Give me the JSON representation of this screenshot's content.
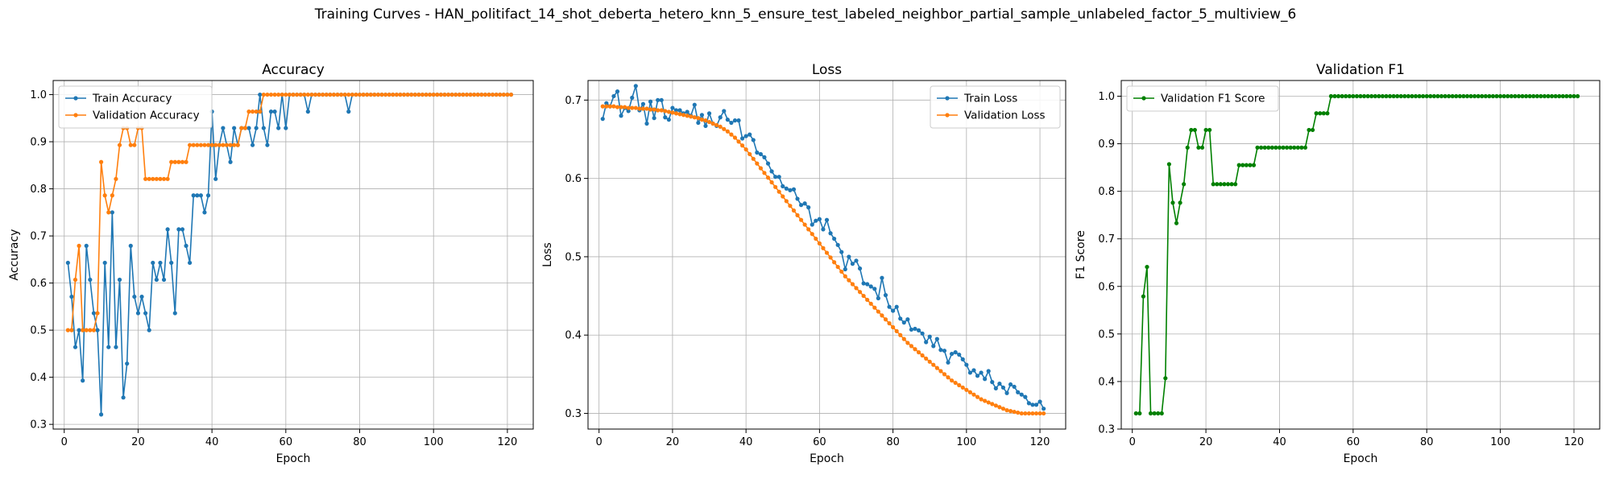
{
  "figure": {
    "title": "Training Curves - HAN_politifact_14_shot_deberta_hetero_knn_5_ensure_test_labeled_neighbor_partial_sample_unlabeled_factor_5_multiview_6"
  },
  "chart_data": [
    {
      "type": "line",
      "title": "Accuracy",
      "xlabel": "Epoch",
      "ylabel": "Accuracy",
      "xlim": [
        -3.0,
        127.0
      ],
      "ylim": [
        0.29,
        1.03
      ],
      "xticks": [
        0,
        20,
        40,
        60,
        80,
        100,
        120
      ],
      "yticks": [
        0.3,
        0.4,
        0.5,
        0.6,
        0.7,
        0.8,
        0.9,
        1.0
      ],
      "ytick_labels": [
        "0.3",
        "0.4",
        "0.5",
        "0.6",
        "0.7",
        "0.8",
        "0.9",
        "1.0"
      ],
      "grid": true,
      "legend_position": "upper-left",
      "x": [
        1,
        2,
        3,
        4,
        5,
        6,
        7,
        8,
        9,
        10,
        11,
        12,
        13,
        14,
        15,
        16,
        17,
        18,
        19,
        20,
        21,
        22,
        23,
        24,
        25,
        26,
        27,
        28,
        29,
        30,
        31,
        32,
        33,
        34,
        35,
        36,
        37,
        38,
        39,
        40,
        41,
        42,
        43,
        44,
        45,
        46,
        47,
        48,
        49,
        50,
        51,
        52,
        53,
        54,
        55,
        56,
        57,
        58,
        59,
        60,
        61,
        62,
        63,
        64,
        65,
        66,
        67,
        68,
        69,
        70,
        71,
        72,
        73,
        74,
        75,
        76,
        77,
        78,
        79,
        80,
        81,
        82,
        83,
        84,
        85,
        86,
        87,
        88,
        89,
        90,
        91,
        92,
        93,
        94,
        95,
        96,
        97,
        98,
        99,
        100,
        101,
        102,
        103,
        104,
        105,
        106,
        107,
        108,
        109,
        110,
        111,
        112,
        113,
        114,
        115,
        116,
        117,
        118,
        119,
        120,
        121
      ],
      "series": [
        {
          "name": "Train Accuracy",
          "color": "#1f77b4",
          "values": [
            0.643,
            0.571,
            0.464,
            0.5,
            0.393,
            0.679,
            0.607,
            0.536,
            0.5,
            0.321,
            0.643,
            0.464,
            0.75,
            0.464,
            0.607,
            0.357,
            0.429,
            0.679,
            0.571,
            0.536,
            0.571,
            0.536,
            0.5,
            0.643,
            0.607,
            0.643,
            0.607,
            0.714,
            0.643,
            0.536,
            0.714,
            0.714,
            0.679,
            0.643,
            0.786,
            0.786,
            0.786,
            0.75,
            0.786,
            0.964,
            0.821,
            0.893,
            0.929,
            0.893,
            0.857,
            0.929,
            0.893,
            0.929,
            0.929,
            0.929,
            0.893,
            0.929,
            1.0,
            0.929,
            0.893,
            0.964,
            0.964,
            0.929,
            1.0,
            0.929,
            1.0,
            1.0,
            1.0,
            1.0,
            1.0,
            0.964,
            1.0,
            1.0,
            1.0,
            1.0,
            1.0,
            1.0,
            1.0,
            1.0,
            1.0,
            1.0,
            0.964,
            1.0,
            1.0,
            1.0,
            1.0,
            1.0,
            1.0,
            1.0,
            1.0,
            1.0,
            1.0,
            1.0,
            1.0,
            1.0,
            1.0,
            1.0,
            1.0,
            1.0,
            1.0,
            1.0,
            1.0,
            1.0,
            1.0,
            1.0,
            1.0,
            1.0,
            1.0,
            1.0,
            1.0,
            1.0,
            1.0,
            1.0,
            1.0,
            1.0,
            1.0,
            1.0,
            1.0,
            1.0,
            1.0,
            1.0,
            1.0,
            1.0,
            1.0,
            1.0,
            1.0
          ]
        },
        {
          "name": "Validation Accuracy",
          "color": "#ff7f0e",
          "values": [
            0.5,
            0.5,
            0.607,
            0.679,
            0.5,
            0.5,
            0.5,
            0.5,
            0.536,
            0.857,
            0.786,
            0.75,
            0.786,
            0.821,
            0.893,
            0.929,
            0.929,
            0.893,
            0.893,
            0.929,
            0.929,
            0.821,
            0.821,
            0.821,
            0.821,
            0.821,
            0.821,
            0.821,
            0.857,
            0.857,
            0.857,
            0.857,
            0.857,
            0.893,
            0.893,
            0.893,
            0.893,
            0.893,
            0.893,
            0.893,
            0.893,
            0.893,
            0.893,
            0.893,
            0.893,
            0.893,
            0.893,
            0.929,
            0.929,
            0.964,
            0.964,
            0.964,
            0.964,
            1.0,
            1.0,
            1.0,
            1.0,
            1.0,
            1.0,
            1.0,
            1.0,
            1.0,
            1.0,
            1.0,
            1.0,
            1.0,
            1.0,
            1.0,
            1.0,
            1.0,
            1.0,
            1.0,
            1.0,
            1.0,
            1.0,
            1.0,
            1.0,
            1.0,
            1.0,
            1.0,
            1.0,
            1.0,
            1.0,
            1.0,
            1.0,
            1.0,
            1.0,
            1.0,
            1.0,
            1.0,
            1.0,
            1.0,
            1.0,
            1.0,
            1.0,
            1.0,
            1.0,
            1.0,
            1.0,
            1.0,
            1.0,
            1.0,
            1.0,
            1.0,
            1.0,
            1.0,
            1.0,
            1.0,
            1.0,
            1.0,
            1.0,
            1.0,
            1.0,
            1.0,
            1.0,
            1.0,
            1.0,
            1.0,
            1.0,
            1.0,
            1.0
          ]
        }
      ]
    },
    {
      "type": "line",
      "title": "Loss",
      "xlabel": "Epoch",
      "ylabel": "Loss",
      "xlim": [
        -3.0,
        127.0
      ],
      "ylim": [
        0.28,
        0.725
      ],
      "xticks": [
        0,
        20,
        40,
        60,
        80,
        100,
        120
      ],
      "yticks": [
        0.3,
        0.4,
        0.5,
        0.6,
        0.7
      ],
      "ytick_labels": [
        "0.3",
        "0.4",
        "0.5",
        "0.6",
        "0.7"
      ],
      "grid": true,
      "legend_position": "upper-right",
      "x": [
        1,
        2,
        3,
        4,
        5,
        6,
        7,
        8,
        9,
        10,
        11,
        12,
        13,
        14,
        15,
        16,
        17,
        18,
        19,
        20,
        21,
        22,
        23,
        24,
        25,
        26,
        27,
        28,
        29,
        30,
        31,
        32,
        33,
        34,
        35,
        36,
        37,
        38,
        39,
        40,
        41,
        42,
        43,
        44,
        45,
        46,
        47,
        48,
        49,
        50,
        51,
        52,
        53,
        54,
        55,
        56,
        57,
        58,
        59,
        60,
        61,
        62,
        63,
        64,
        65,
        66,
        67,
        68,
        69,
        70,
        71,
        72,
        73,
        74,
        75,
        76,
        77,
        78,
        79,
        80,
        81,
        82,
        83,
        84,
        85,
        86,
        87,
        88,
        89,
        90,
        91,
        92,
        93,
        94,
        95,
        96,
        97,
        98,
        99,
        100,
        101,
        102,
        103,
        104,
        105,
        106,
        107,
        108,
        109,
        110,
        111,
        112,
        113,
        114,
        115,
        116,
        117,
        118,
        119,
        120,
        121
      ],
      "series": [
        {
          "name": "Train Loss",
          "color": "#1f77b4",
          "values": [
            0.676,
            0.696,
            0.692,
            0.705,
            0.711,
            0.68,
            0.69,
            0.686,
            0.703,
            0.718,
            0.687,
            0.695,
            0.67,
            0.698,
            0.677,
            0.7,
            0.7,
            0.678,
            0.675,
            0.69,
            0.687,
            0.687,
            0.683,
            0.685,
            0.68,
            0.694,
            0.671,
            0.681,
            0.667,
            0.683,
            0.67,
            0.667,
            0.678,
            0.686,
            0.675,
            0.671,
            0.674,
            0.674,
            0.651,
            0.654,
            0.656,
            0.649,
            0.633,
            0.631,
            0.627,
            0.619,
            0.609,
            0.602,
            0.602,
            0.59,
            0.587,
            0.585,
            0.586,
            0.574,
            0.566,
            0.568,
            0.563,
            0.541,
            0.546,
            0.548,
            0.535,
            0.547,
            0.53,
            0.523,
            0.515,
            0.506,
            0.484,
            0.5,
            0.491,
            0.495,
            0.485,
            0.466,
            0.465,
            0.462,
            0.459,
            0.447,
            0.473,
            0.451,
            0.436,
            0.431,
            0.436,
            0.421,
            0.416,
            0.42,
            0.407,
            0.408,
            0.406,
            0.402,
            0.391,
            0.398,
            0.386,
            0.395,
            0.381,
            0.38,
            0.365,
            0.376,
            0.378,
            0.375,
            0.369,
            0.362,
            0.352,
            0.355,
            0.348,
            0.352,
            0.344,
            0.354,
            0.34,
            0.332,
            0.338,
            0.333,
            0.326,
            0.337,
            0.334,
            0.327,
            0.324,
            0.321,
            0.313,
            0.311,
            0.311,
            0.315,
            0.306
          ]
        },
        {
          "name": "Validation Loss",
          "color": "#ff7f0e",
          "values": [
            0.692,
            0.692,
            0.692,
            0.692,
            0.691,
            0.691,
            0.691,
            0.69,
            0.69,
            0.69,
            0.689,
            0.689,
            0.689,
            0.688,
            0.688,
            0.687,
            0.687,
            0.686,
            0.685,
            0.684,
            0.683,
            0.682,
            0.681,
            0.68,
            0.679,
            0.678,
            0.677,
            0.675,
            0.674,
            0.672,
            0.67,
            0.668,
            0.666,
            0.663,
            0.66,
            0.656,
            0.652,
            0.647,
            0.642,
            0.637,
            0.631,
            0.625,
            0.619,
            0.613,
            0.607,
            0.601,
            0.595,
            0.589,
            0.583,
            0.577,
            0.571,
            0.565,
            0.559,
            0.553,
            0.547,
            0.541,
            0.535,
            0.529,
            0.523,
            0.517,
            0.511,
            0.505,
            0.499,
            0.493,
            0.487,
            0.481,
            0.475,
            0.47,
            0.465,
            0.46,
            0.455,
            0.45,
            0.445,
            0.44,
            0.435,
            0.43,
            0.425,
            0.42,
            0.415,
            0.41,
            0.405,
            0.4,
            0.395,
            0.39,
            0.386,
            0.382,
            0.378,
            0.374,
            0.37,
            0.366,
            0.362,
            0.358,
            0.354,
            0.35,
            0.346,
            0.342,
            0.339,
            0.336,
            0.333,
            0.33,
            0.327,
            0.324,
            0.321,
            0.318,
            0.316,
            0.314,
            0.312,
            0.31,
            0.308,
            0.306,
            0.304,
            0.303,
            0.302,
            0.301,
            0.3,
            0.3,
            0.3,
            0.3,
            0.3,
            0.3,
            0.3
          ]
        }
      ]
    },
    {
      "type": "line",
      "title": "Validation F1",
      "xlabel": "Epoch",
      "ylabel": "F1 Score",
      "xlim": [
        -3.0,
        127.0
      ],
      "ylim": [
        0.3,
        1.033
      ],
      "xticks": [
        0,
        20,
        40,
        60,
        80,
        100,
        120
      ],
      "yticks": [
        0.3,
        0.4,
        0.5,
        0.6,
        0.7,
        0.8,
        0.9,
        1.0
      ],
      "ytick_labels": [
        "0.3",
        "0.4",
        "0.5",
        "0.6",
        "0.7",
        "0.8",
        "0.9",
        "1.0"
      ],
      "grid": true,
      "legend_position": "upper-left",
      "x": [
        1,
        2,
        3,
        4,
        5,
        6,
        7,
        8,
        9,
        10,
        11,
        12,
        13,
        14,
        15,
        16,
        17,
        18,
        19,
        20,
        21,
        22,
        23,
        24,
        25,
        26,
        27,
        28,
        29,
        30,
        31,
        32,
        33,
        34,
        35,
        36,
        37,
        38,
        39,
        40,
        41,
        42,
        43,
        44,
        45,
        46,
        47,
        48,
        49,
        50,
        51,
        52,
        53,
        54,
        55,
        56,
        57,
        58,
        59,
        60,
        61,
        62,
        63,
        64,
        65,
        66,
        67,
        68,
        69,
        70,
        71,
        72,
        73,
        74,
        75,
        76,
        77,
        78,
        79,
        80,
        81,
        82,
        83,
        84,
        85,
        86,
        87,
        88,
        89,
        90,
        91,
        92,
        93,
        94,
        95,
        96,
        97,
        98,
        99,
        100,
        101,
        102,
        103,
        104,
        105,
        106,
        107,
        108,
        109,
        110,
        111,
        112,
        113,
        114,
        115,
        116,
        117,
        118,
        119,
        120,
        121
      ],
      "series": [
        {
          "name": "Validation F1 Score",
          "color": "#008000",
          "values": [
            0.333,
            0.333,
            0.579,
            0.641,
            0.333,
            0.333,
            0.333,
            0.333,
            0.407,
            0.857,
            0.776,
            0.733,
            0.776,
            0.815,
            0.892,
            0.929,
            0.929,
            0.892,
            0.892,
            0.929,
            0.929,
            0.815,
            0.815,
            0.815,
            0.815,
            0.815,
            0.815,
            0.815,
            0.855,
            0.855,
            0.855,
            0.855,
            0.855,
            0.892,
            0.892,
            0.892,
            0.892,
            0.892,
            0.892,
            0.892,
            0.892,
            0.892,
            0.892,
            0.892,
            0.892,
            0.892,
            0.892,
            0.929,
            0.929,
            0.964,
            0.964,
            0.964,
            0.964,
            1.0,
            1.0,
            1.0,
            1.0,
            1.0,
            1.0,
            1.0,
            1.0,
            1.0,
            1.0,
            1.0,
            1.0,
            1.0,
            1.0,
            1.0,
            1.0,
            1.0,
            1.0,
            1.0,
            1.0,
            1.0,
            1.0,
            1.0,
            1.0,
            1.0,
            1.0,
            1.0,
            1.0,
            1.0,
            1.0,
            1.0,
            1.0,
            1.0,
            1.0,
            1.0,
            1.0,
            1.0,
            1.0,
            1.0,
            1.0,
            1.0,
            1.0,
            1.0,
            1.0,
            1.0,
            1.0,
            1.0,
            1.0,
            1.0,
            1.0,
            1.0,
            1.0,
            1.0,
            1.0,
            1.0,
            1.0,
            1.0,
            1.0,
            1.0,
            1.0,
            1.0,
            1.0,
            1.0,
            1.0,
            1.0,
            1.0,
            1.0,
            1.0
          ]
        }
      ]
    }
  ]
}
